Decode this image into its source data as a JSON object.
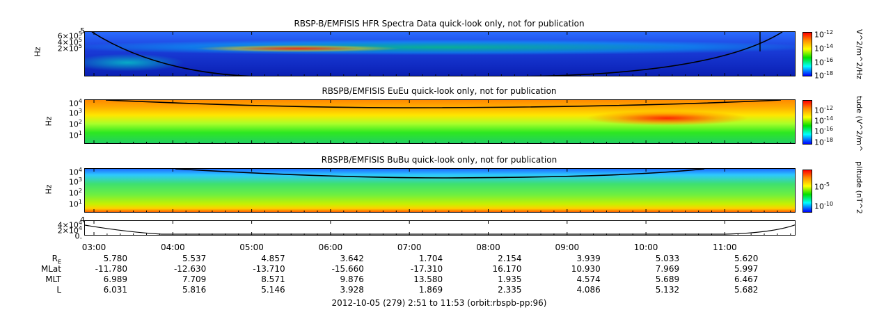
{
  "panels": [
    {
      "title": "RBSP-B/EMFISIS  HFR Spectra Data quick-look only, not for publication",
      "ylabel": "Hz",
      "yticks": [
        {
          "base": "6×10",
          "exp": "5"
        },
        {
          "base": "4×10",
          "exp": "5"
        },
        {
          "base": "2×10",
          "exp": "5"
        }
      ],
      "ytop": "5",
      "colorbar": {
        "label": "V^2/m^2/Hz",
        "ticks": [
          {
            "base": "10",
            "exp": "-12"
          },
          {
            "base": "10",
            "exp": "-14"
          },
          {
            "base": "10",
            "exp": "-16"
          },
          {
            "base": "10",
            "exp": "-18"
          }
        ]
      }
    },
    {
      "title": "RBSPB/EMFISIS  EuEu quick-look only, not for publication",
      "ylabel": "Hz",
      "yticks": [
        {
          "base": "10",
          "exp": "4"
        },
        {
          "base": "10",
          "exp": "3"
        },
        {
          "base": "10",
          "exp": "2"
        },
        {
          "base": "10",
          "exp": "1"
        }
      ],
      "colorbar": {
        "label": "tude (V^2/m^",
        "ticks": [
          {
            "base": "10",
            "exp": "-12"
          },
          {
            "base": "10",
            "exp": "-14"
          },
          {
            "base": "10",
            "exp": "-16"
          },
          {
            "base": "10",
            "exp": "-18"
          }
        ]
      }
    },
    {
      "title": "RBSPB/EMFISIS  BuBu quick-look only, not for publication",
      "ylabel": "Hz",
      "yticks": [
        {
          "base": "10",
          "exp": "4"
        },
        {
          "base": "10",
          "exp": "3"
        },
        {
          "base": "10",
          "exp": "2"
        },
        {
          "base": "10",
          "exp": "1"
        }
      ],
      "colorbar": {
        "label": "plitude (nT^2",
        "ticks": [
          {
            "base": "10",
            "exp": "-5"
          },
          {
            "base": "10",
            "exp": "-10"
          }
        ]
      }
    }
  ],
  "small_panel": {
    "yticks": [
      {
        "base": "4×10",
        "exp": "4"
      },
      {
        "base": "2×10",
        "exp": "4"
      },
      {
        "base": "0.",
        "exp": ""
      }
    ],
    "ytop": "4"
  },
  "colors": {
    "background": "#0000c8",
    "curve": "#000000",
    "frame": "#000000"
  },
  "chart_data": {
    "type": "heatmap",
    "x_ticks": [
      "03:00",
      "04:00",
      "05:00",
      "06:00",
      "07:00",
      "08:00",
      "09:00",
      "10:00",
      "11:00"
    ],
    "ephemeris": {
      "rows": [
        {
          "label": "R",
          "sub": "E",
          "values": [
            "5.780",
            "5.537",
            "4.857",
            "3.642",
            "1.704",
            "2.154",
            "3.939",
            "5.033",
            "5.620"
          ]
        },
        {
          "label": "MLat",
          "sub": "",
          "values": [
            "-11.780",
            "-12.630",
            "-13.710",
            "-15.660",
            "-17.310",
            "16.170",
            "10.930",
            "7.969",
            "5.997"
          ]
        },
        {
          "label": "MLT",
          "sub": "",
          "values": [
            "6.989",
            "7.709",
            "8.571",
            "9.876",
            "13.580",
            "1.935",
            "4.574",
            "5.689",
            "6.467"
          ]
        },
        {
          "label": "L",
          "sub": "",
          "values": [
            "6.031",
            "5.816",
            "5.146",
            "3.928",
            "1.869",
            "2.335",
            "4.086",
            "5.132",
            "5.682"
          ]
        }
      ]
    },
    "footer": "2012-10-05 (279) 2:51 to 11:53 (orbit:rbspb-pp:96)"
  }
}
